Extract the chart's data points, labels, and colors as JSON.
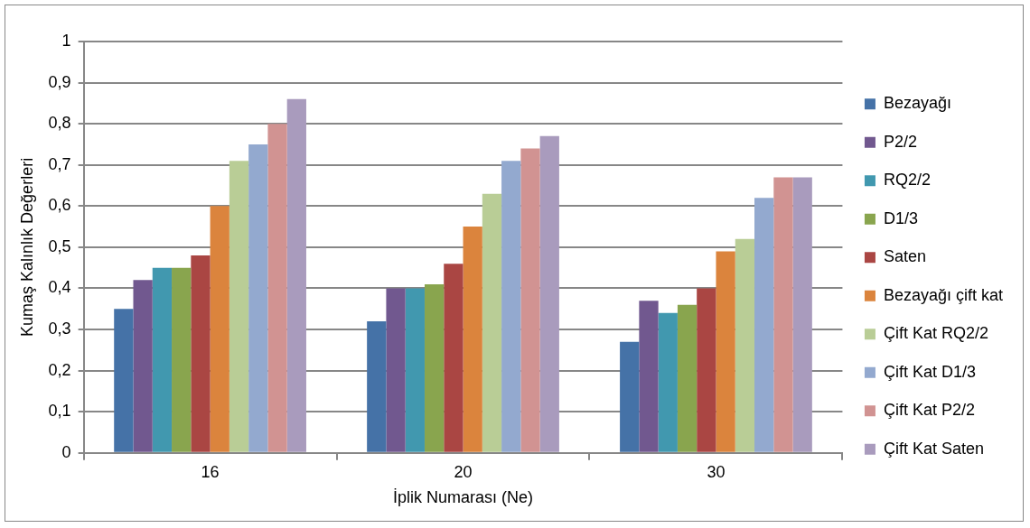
{
  "chart_data": {
    "type": "bar",
    "xlabel": "İplik Numarası (Ne)",
    "ylabel": "Kumaş Kalınlık Değerleri",
    "categories": [
      "16",
      "20",
      "30"
    ],
    "series": [
      {
        "name": "Bezayağı",
        "color": "#4572a7",
        "values": [
          0.35,
          0.32,
          0.27
        ]
      },
      {
        "name": "P2/2",
        "color": "#71588f",
        "values": [
          0.42,
          0.4,
          0.37
        ]
      },
      {
        "name": "RQ2/2",
        "color": "#4198af",
        "values": [
          0.45,
          0.4,
          0.34
        ]
      },
      {
        "name": "D1/3",
        "color": "#89a54e",
        "values": [
          0.45,
          0.41,
          0.36
        ]
      },
      {
        "name": "Saten",
        "color": "#aa4643",
        "values": [
          0.48,
          0.46,
          0.4
        ]
      },
      {
        "name": "Bezayağı çift kat",
        "color": "#db843d",
        "values": [
          0.6,
          0.55,
          0.49
        ]
      },
      {
        "name": "Çift Kat RQ2/2",
        "color": "#b9cd96",
        "values": [
          0.71,
          0.63,
          0.52
        ]
      },
      {
        "name": "Çift Kat D1/3",
        "color": "#93a9cf",
        "values": [
          0.75,
          0.71,
          0.62
        ]
      },
      {
        "name": "Çift Kat P2/2",
        "color": "#d19392",
        "values": [
          0.8,
          0.74,
          0.67
        ]
      },
      {
        "name": "Çift Kat Saten",
        "color": "#a99bbd",
        "values": [
          0.86,
          0.77,
          0.67
        ]
      }
    ],
    "ylim": [
      0,
      1
    ],
    "yticks": [
      0,
      {
        "value": 0.1,
        "label": "0,1"
      },
      {
        "value": 0.2,
        "label": "0,2"
      },
      {
        "value": 0.3,
        "label": "0,3"
      },
      {
        "value": 0.4,
        "label": "0,4"
      },
      {
        "value": 0.5,
        "label": "0,5"
      },
      {
        "value": 0.6,
        "label": "0,6"
      },
      {
        "value": 0.7,
        "label": "0,7"
      },
      {
        "value": 0.8,
        "label": "0,8"
      },
      {
        "value": 0.9,
        "label": "0,9"
      },
      1
    ],
    "grid": "y",
    "legend": "right"
  }
}
